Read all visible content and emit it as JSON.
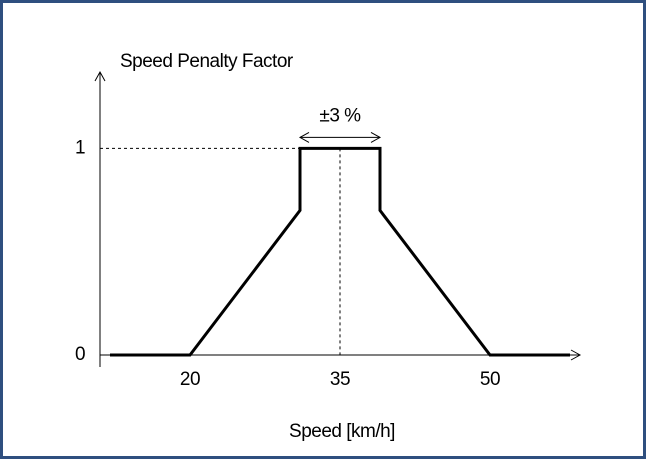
{
  "chart_data": {
    "type": "line",
    "y_label": "Speed Penalty Factor",
    "x_label": "Speed [km/h]",
    "annotation": "±3 %",
    "x": [
      12,
      20,
      31,
      31,
      39,
      39,
      50,
      58
    ],
    "series": [
      {
        "color": "#000000",
        "values": [
          0,
          0,
          0.7,
          1,
          1,
          0.7,
          0,
          0
        ]
      }
    ],
    "xlim": [
      11,
      59
    ],
    "ylim": [
      0,
      1.37
    ],
    "xticks": [
      20,
      35,
      50
    ],
    "yticks": [
      0,
      1
    ],
    "grid": false
  }
}
